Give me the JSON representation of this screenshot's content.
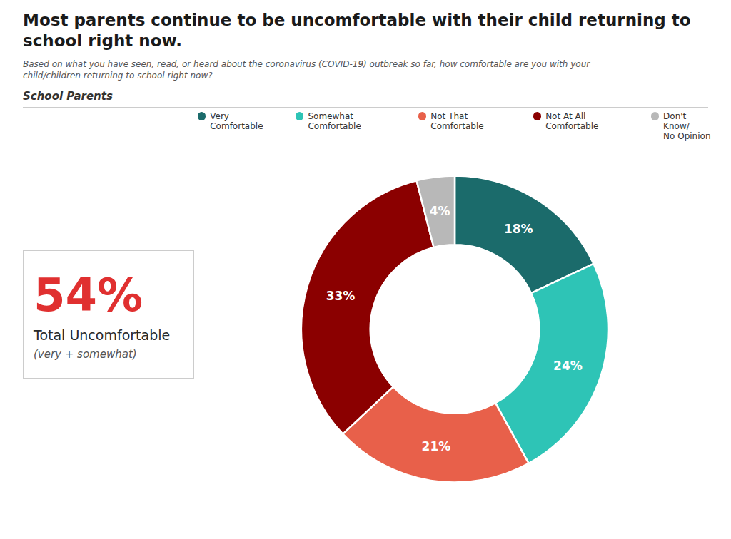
{
  "chart_data": {
    "type": "donut",
    "title": "Most parents continue to be uncomfortable with their child returning to\nschool right now.",
    "subtitle": "Based on what you have seen, read, or heard about the coronavirus (COVID-19) outbreak so far, how comfortable are you with your\nchild/children returning to school right now?",
    "categories": [
      "Very Comfortable",
      "Somewhat Comfortable",
      "Not That Comfortable",
      "Not At All Comfortable",
      "Don't Know/\nNo Opinion"
    ],
    "values": [
      18,
      24,
      21,
      33,
      4
    ],
    "value_labels": [
      "18%",
      "24%",
      "21%",
      "33%",
      "4%"
    ],
    "colors": [
      "#1b6b6b",
      "#2ec4b6",
      "#e8604a",
      "#8b0000",
      "#b8b8b8"
    ],
    "data_labels": true,
    "legend": "top",
    "annotations": [
      {
        "text": "School Parents"
      },
      {
        "text": "54%",
        "color": "#e03030"
      },
      {
        "text": "Total Uncomfortable"
      },
      {
        "text": "(very + somewhat)"
      }
    ]
  }
}
